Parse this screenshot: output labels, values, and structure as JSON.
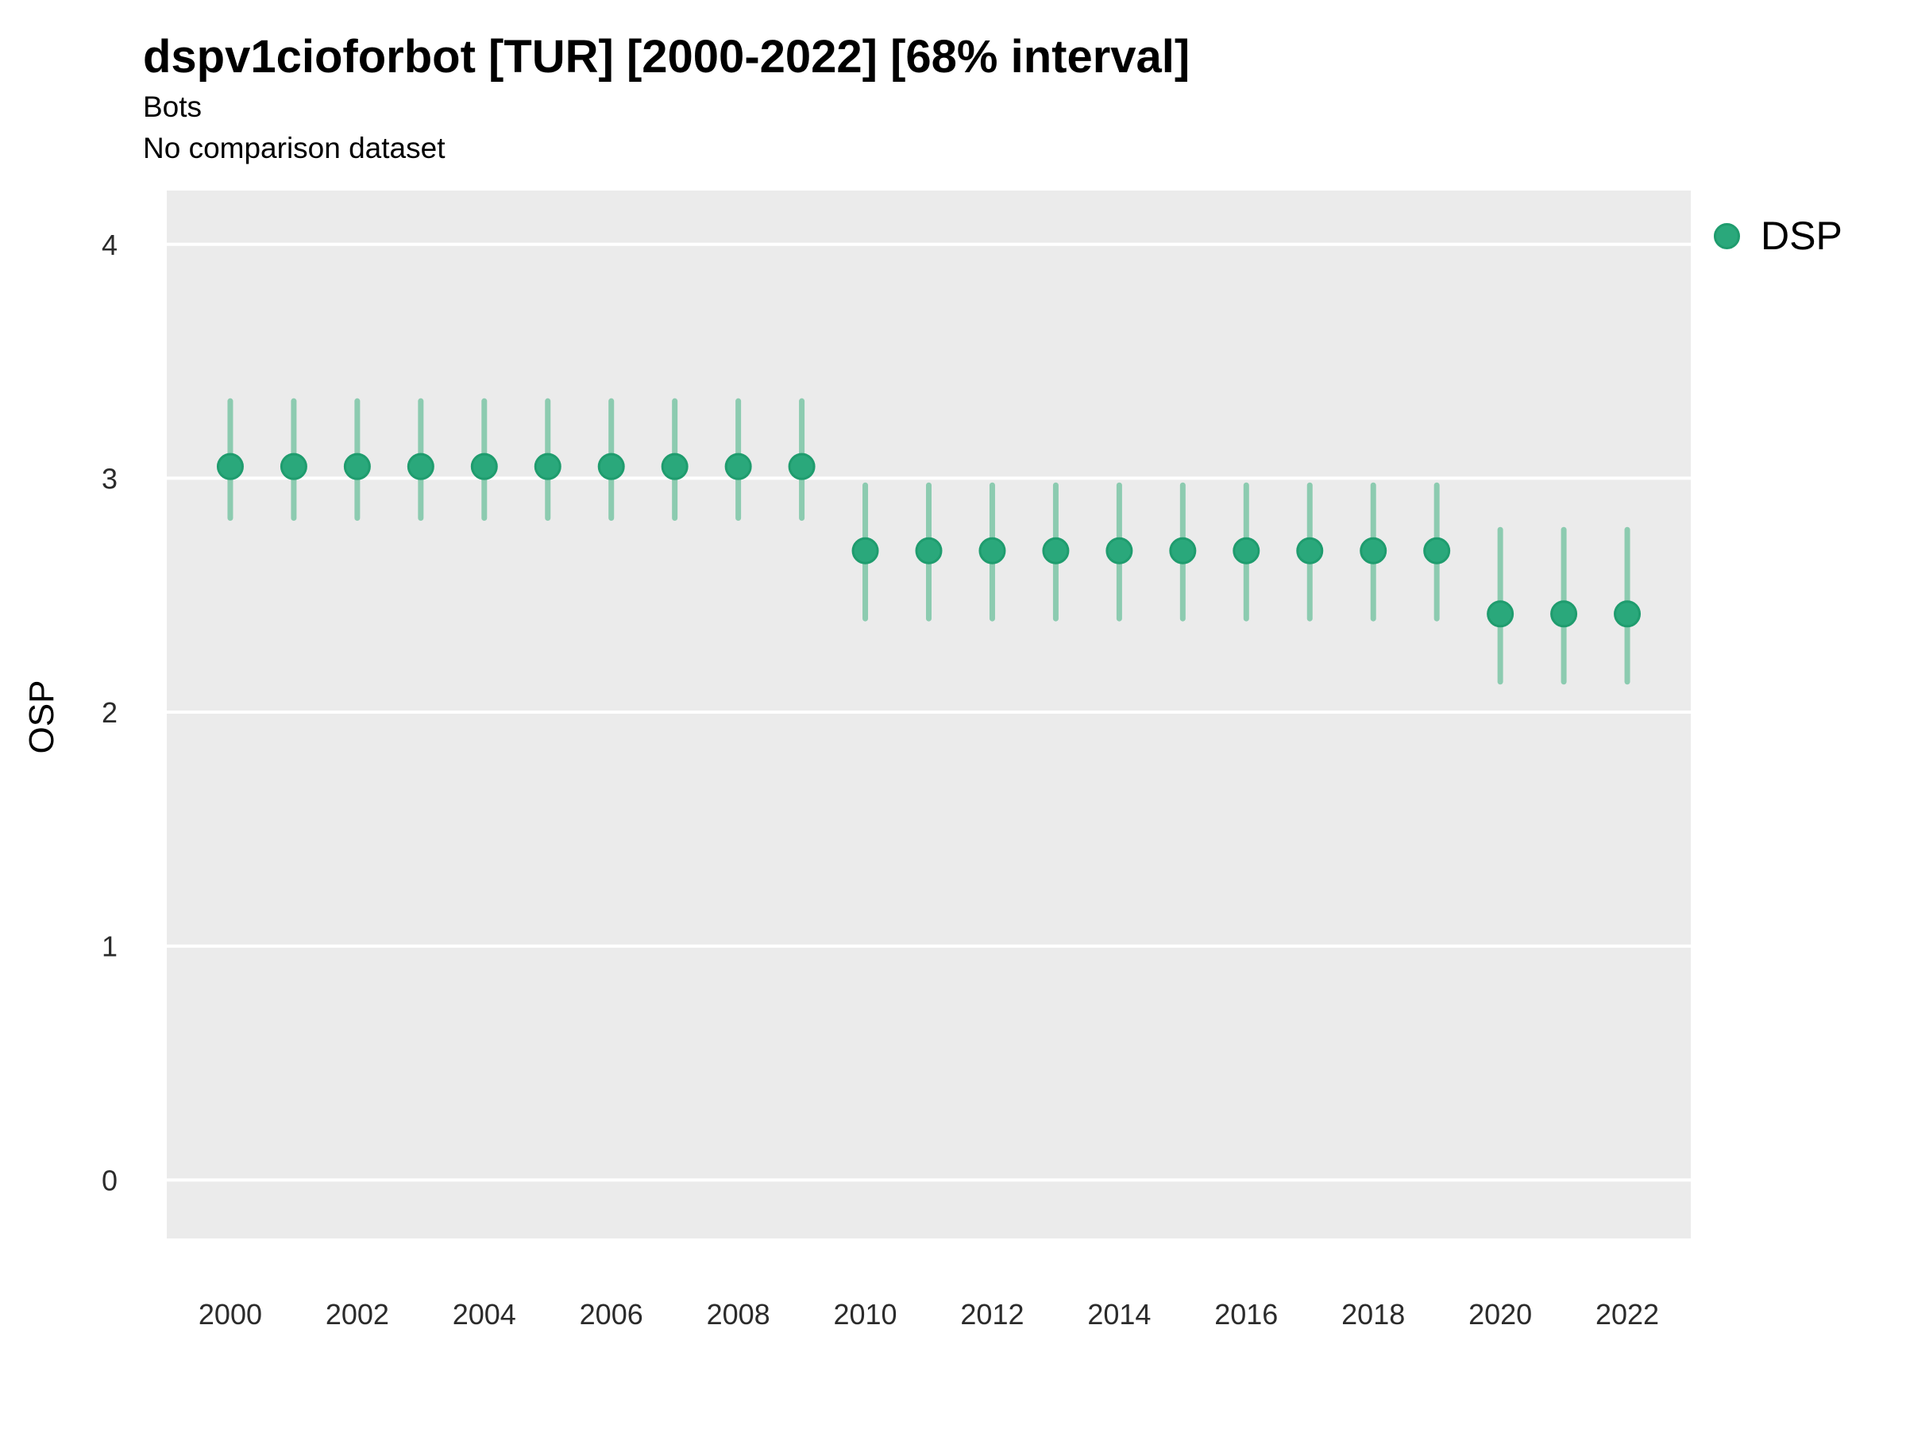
{
  "title": "dspv1cioforbot [TUR] [2000-2022] [68% interval]",
  "subtitle": "Bots",
  "comparison_note": "No comparison dataset",
  "legend": {
    "items": [
      {
        "label": "DSP",
        "marker_color": "#2AA87B"
      }
    ]
  },
  "colors": {
    "point_fill": "#2AA87B",
    "point_stroke": "#1F9C6E",
    "errorbar": "#8CCBB0",
    "panel_bg": "#EBEBEB",
    "gridline": "#FFFFFF",
    "tick_text": "#2b2b2b"
  },
  "chart_data": {
    "type": "scatter",
    "title": "dspv1cioforbot [TUR] [2000-2022] [68% interval]",
    "subtitle": [
      "Bots",
      "No comparison dataset"
    ],
    "xlabel": "",
    "ylabel": "OSP",
    "interval": "68%",
    "x": [
      2000,
      2001,
      2002,
      2003,
      2004,
      2005,
      2006,
      2007,
      2008,
      2009,
      2010,
      2011,
      2012,
      2013,
      2014,
      2015,
      2016,
      2017,
      2018,
      2019,
      2020,
      2021,
      2022
    ],
    "series": [
      {
        "name": "DSP",
        "values": [
          3.05,
          3.05,
          3.05,
          3.05,
          3.05,
          3.05,
          3.05,
          3.05,
          3.05,
          3.05,
          2.69,
          2.69,
          2.69,
          2.69,
          2.69,
          2.69,
          2.69,
          2.69,
          2.69,
          2.69,
          2.42,
          2.42,
          2.42
        ],
        "lower_68": [
          2.83,
          2.83,
          2.83,
          2.83,
          2.83,
          2.83,
          2.83,
          2.83,
          2.83,
          2.83,
          2.4,
          2.4,
          2.4,
          2.4,
          2.4,
          2.4,
          2.4,
          2.4,
          2.4,
          2.4,
          2.13,
          2.13,
          2.13
        ],
        "upper_68": [
          3.33,
          3.33,
          3.33,
          3.33,
          3.33,
          3.33,
          3.33,
          3.33,
          3.33,
          3.33,
          2.97,
          2.97,
          2.97,
          2.97,
          2.97,
          2.97,
          2.97,
          2.97,
          2.97,
          2.97,
          2.78,
          2.78,
          2.78
        ]
      }
    ],
    "ylim": [
      -0.25,
      4.23
    ],
    "yticks": [
      0,
      1,
      2,
      3,
      4
    ],
    "xticks": [
      2000,
      2002,
      2004,
      2006,
      2008,
      2010,
      2012,
      2014,
      2016,
      2018,
      2020,
      2022
    ],
    "grid": "horizontal-major-only",
    "legend_position": "right-top"
  }
}
